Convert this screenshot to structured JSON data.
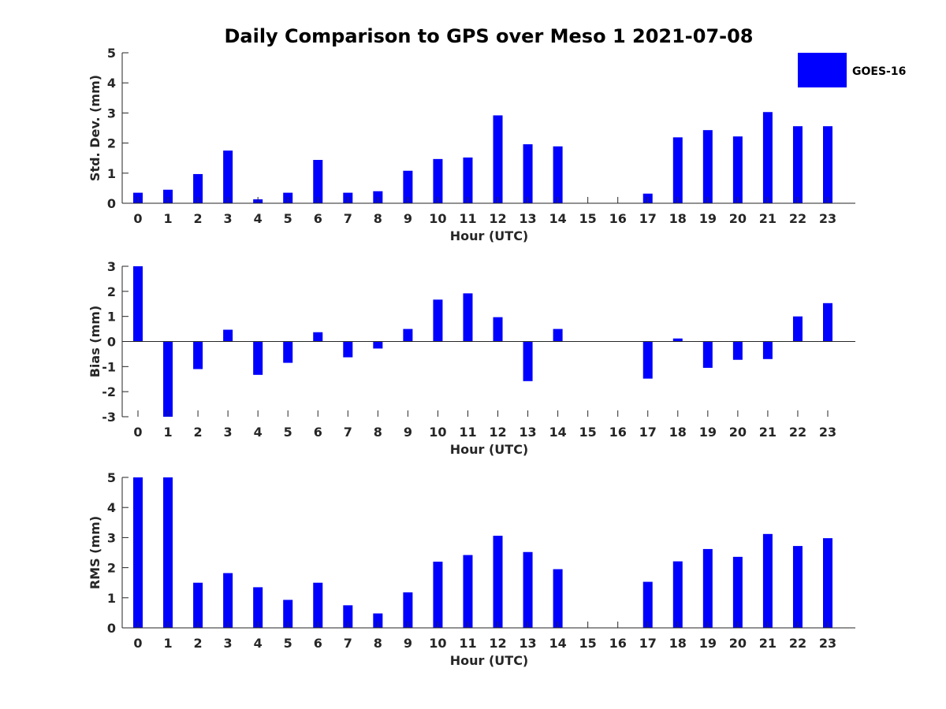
{
  "chart_data": {
    "title": "Daily Comparison to GPS over Meso 1 2021-07-08",
    "type": "bar",
    "legend": {
      "entries": [
        "GOES-16"
      ],
      "placement": "top-right"
    },
    "bar_color": "#0000ff",
    "categories": [
      "0",
      "1",
      "2",
      "3",
      "4",
      "5",
      "6",
      "7",
      "8",
      "9",
      "10",
      "11",
      "12",
      "13",
      "14",
      "15",
      "16",
      "17",
      "18",
      "19",
      "20",
      "21",
      "22",
      "23"
    ],
    "subplots": [
      {
        "type": "bar",
        "xlabel": "Hour (UTC)",
        "ylabel": "Std. Dev. (mm)",
        "ylim": [
          0,
          5
        ],
        "yticks": [
          "0",
          "1",
          "2",
          "3",
          "4",
          "5"
        ],
        "series": [
          {
            "name": "GOES-16",
            "values": [
              0.35,
              0.45,
              0.97,
              1.75,
              0.13,
              0.35,
              1.44,
              0.35,
              0.4,
              1.08,
              1.47,
              1.52,
              2.92,
              1.96,
              1.89,
              null,
              null,
              0.32,
              2.19,
              2.43,
              2.22,
              3.03,
              2.56,
              2.56
            ]
          }
        ]
      },
      {
        "type": "bar",
        "xlabel": "Hour (UTC)",
        "ylabel": "Bias (mm)",
        "ylim": [
          -3,
          3
        ],
        "yticks": [
          "-3",
          "-2",
          "-1",
          "0",
          "1",
          "2",
          "3"
        ],
        "series": [
          {
            "name": "GOES-16",
            "values": [
              3.0,
              -3.0,
              -1.1,
              0.47,
              -1.33,
              -0.85,
              0.37,
              -0.63,
              -0.28,
              0.5,
              1.67,
              1.92,
              0.97,
              -1.58,
              0.5,
              null,
              null,
              -1.48,
              0.12,
              -1.05,
              -0.73,
              -0.7,
              1.0,
              1.53
            ]
          }
        ]
      },
      {
        "type": "bar",
        "xlabel": "Hour (UTC)",
        "ylabel": "RMS (mm)",
        "ylim": [
          0,
          5
        ],
        "yticks": [
          "0",
          "1",
          "2",
          "3",
          "4",
          "5"
        ],
        "series": [
          {
            "name": "GOES-16",
            "values": [
              5.0,
              5.0,
              1.5,
              1.82,
              1.35,
              0.93,
              1.5,
              0.75,
              0.48,
              1.18,
              2.2,
              2.42,
              3.06,
              2.52,
              1.95,
              null,
              null,
              1.53,
              2.21,
              2.62,
              2.36,
              3.12,
              2.72,
              2.98
            ]
          }
        ]
      }
    ]
  }
}
